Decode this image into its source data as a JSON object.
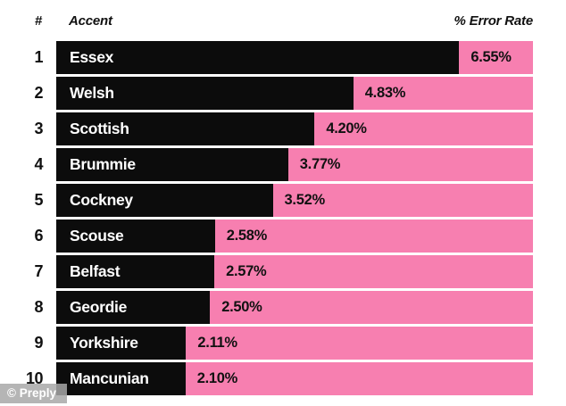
{
  "header": {
    "rank": "#",
    "accent": "Accent",
    "error_rate": "% Error Rate"
  },
  "watermark": "© Preply",
  "colors": {
    "background": "#FFFFFF",
    "pink": "#F77FB0",
    "bar_black": "#0C0C0C",
    "bar_text": "#FFFFFF",
    "value_text": "#111111"
  },
  "chart_data": {
    "type": "bar",
    "orientation": "horizontal",
    "title": "",
    "xlabel": "% Error Rate",
    "ylabel": "Accent",
    "xlim": [
      0,
      7.75
    ],
    "grid": false,
    "legend": false,
    "ranks": [
      "1",
      "2",
      "3",
      "4",
      "5",
      "6",
      "7",
      "8",
      "9",
      "10"
    ],
    "categories": [
      "Essex",
      "Welsh",
      "Scottish",
      "Brummie",
      "Cockney",
      "Scouse",
      "Belfast",
      "Geordie",
      "Yorkshire",
      "Mancunian"
    ],
    "values": [
      6.55,
      4.83,
      4.2,
      3.77,
      3.52,
      2.58,
      2.57,
      2.5,
      2.11,
      2.1
    ],
    "value_labels": [
      "6.55%",
      "4.83%",
      "4.20%",
      "3.77%",
      "3.52%",
      "2.58%",
      "2.57%",
      "2.50%",
      "2.11%",
      "2.10%"
    ]
  }
}
